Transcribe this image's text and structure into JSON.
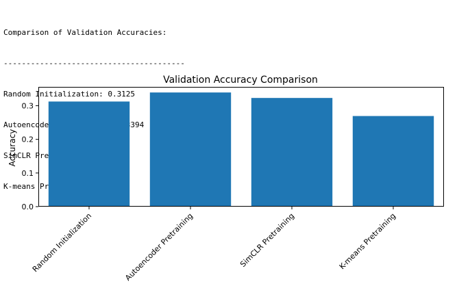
{
  "console": {
    "header": "Comparison of Validation Accuracies:",
    "separator": "----------------------------------------",
    "lines": [
      "Random Initialization: 0.3125",
      "Autoencoder Pretraining: 0.3394",
      "SimCLR Pretraining: 0.3231",
      "K-means Pretraining: 0.2694"
    ]
  },
  "chart_data": {
    "type": "bar",
    "title": "Validation Accuracy Comparison",
    "xlabel": "",
    "ylabel": "Accuracy",
    "categories": [
      "Random Initialization",
      "Autoencoder Pretraining",
      "SimCLR Pretraining",
      "K-means Pretraining"
    ],
    "values": [
      0.3125,
      0.3394,
      0.3231,
      0.2694
    ],
    "ylim": [
      0,
      0.356
    ],
    "yticks": [
      0.0,
      0.1,
      0.2,
      0.3
    ],
    "ytick_labels": [
      "0.0",
      "0.1",
      "0.2",
      "0.3"
    ],
    "bar_color": "#1f77b4",
    "grid": false
  }
}
